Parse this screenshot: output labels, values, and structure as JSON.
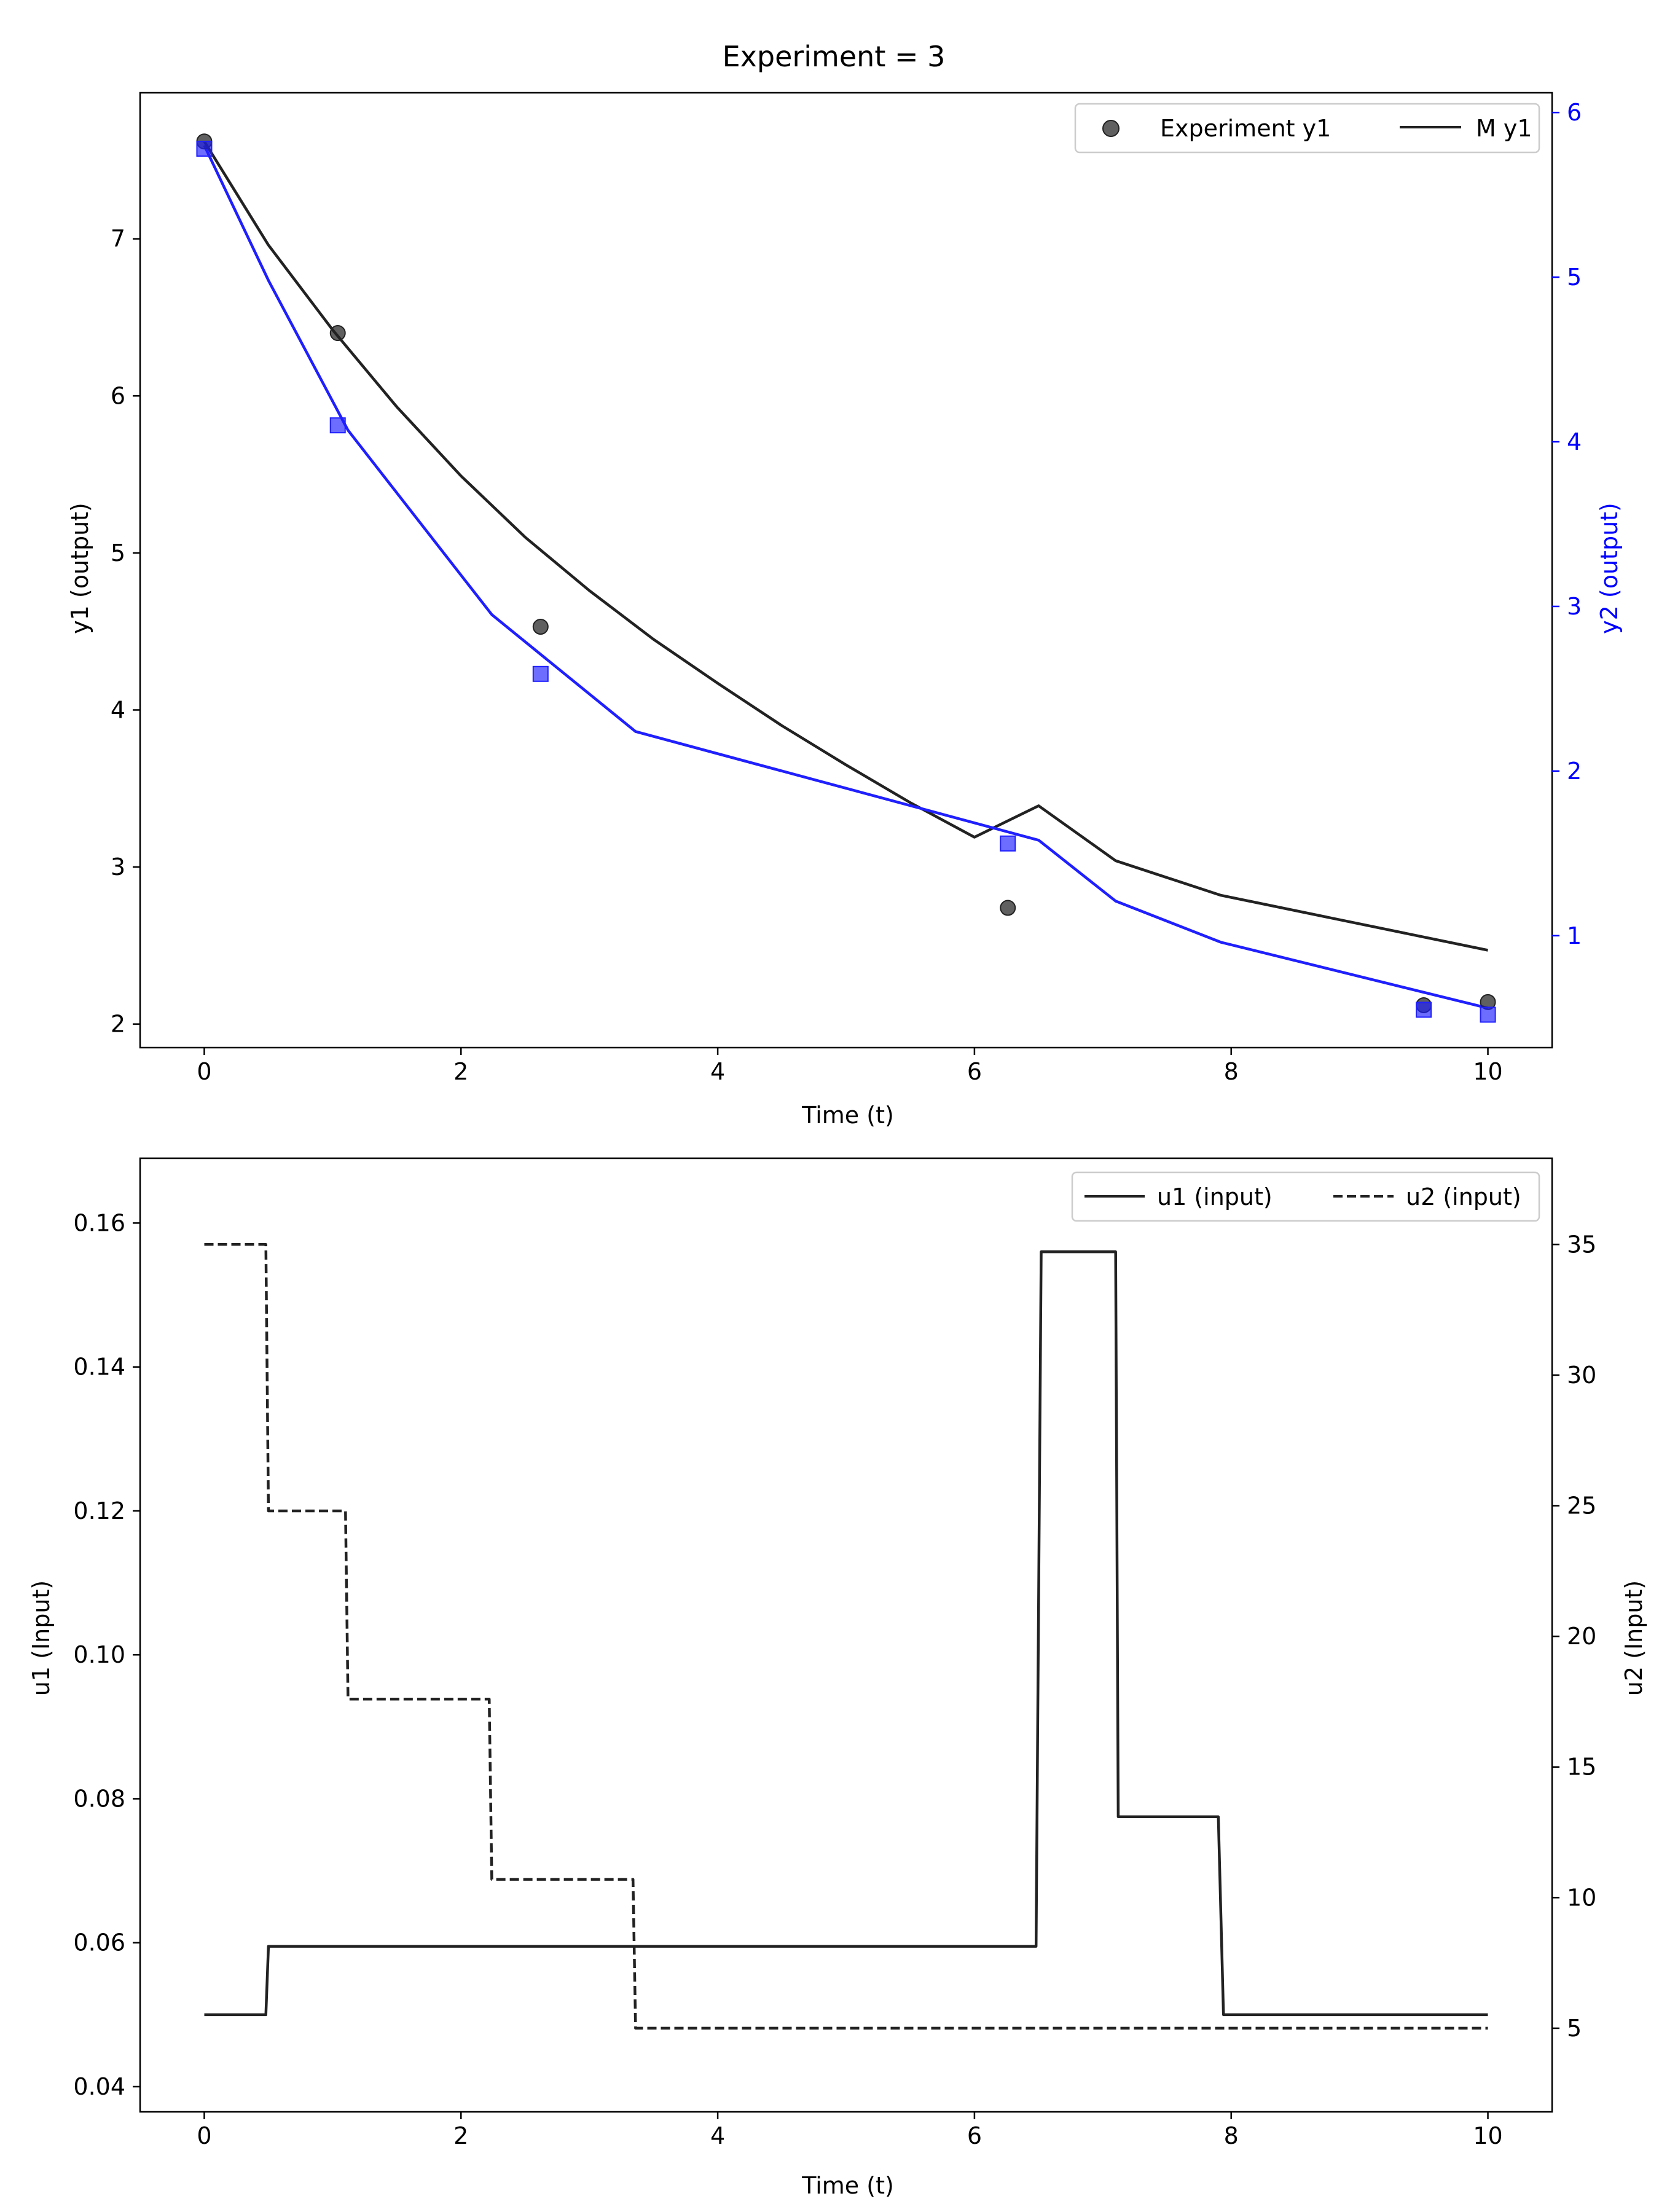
{
  "suptitle": "Experiment = 3",
  "colors": {
    "black": "#222222",
    "blue": "#1f1fff",
    "axis": "#000000",
    "blue_text": "#0000ff"
  },
  "chart_data": [
    {
      "type": "line",
      "name": "top-output-plot",
      "xlabel": "Time (t)",
      "ylabel": "y1 (output)",
      "ylabel_right": "y2 (output)",
      "xlim": [
        -0.5,
        10.5
      ],
      "ylim": [
        1.85,
        7.93
      ],
      "ylim_right": [
        0.32,
        6.12
      ],
      "xticks": [
        0,
        2,
        4,
        6,
        8,
        10
      ],
      "yticks": [
        2,
        3,
        4,
        5,
        6,
        7
      ],
      "yticks_right": [
        1,
        2,
        3,
        4,
        5,
        6
      ],
      "legend": {
        "position": "top-right",
        "entries": [
          {
            "label": "Experiment y1",
            "marker": "circle"
          },
          {
            "label": "M y1",
            "marker": "line"
          }
        ]
      },
      "series": [
        {
          "name": "M y1",
          "axis": "left",
          "style": "line",
          "color": "#222222",
          "x": [
            0,
            0.5,
            1,
            1.5,
            2,
            2.5,
            3,
            3.5,
            4,
            4.5,
            5,
            5.5,
            6,
            6.5,
            7.1,
            7.92,
            10
          ],
          "y": [
            7.62,
            6.96,
            6.42,
            5.93,
            5.49,
            5.1,
            4.76,
            4.45,
            4.17,
            3.9,
            3.65,
            3.41,
            3.19,
            3.39,
            3.04,
            2.82,
            2.47
          ]
        },
        {
          "name": "M y2",
          "axis": "right",
          "style": "line",
          "color": "#1f1fff",
          "x": [
            0,
            0.5,
            1.12,
            2.24,
            3.36,
            6.5,
            7.1,
            7.92,
            10
          ],
          "y": [
            5.8,
            4.98,
            4.07,
            2.95,
            2.24,
            1.58,
            1.21,
            0.96,
            0.56
          ]
        },
        {
          "name": "Experiment y1",
          "axis": "left",
          "style": "scatter-circle",
          "color": "#222222",
          "x": [
            0,
            1.04,
            2.62,
            6.26,
            9.5,
            10
          ],
          "y": [
            7.62,
            6.4,
            4.53,
            2.74,
            2.12,
            2.14
          ]
        },
        {
          "name": "Experiment y2",
          "axis": "right",
          "style": "scatter-square",
          "color": "#1f1fff",
          "x": [
            0,
            1.04,
            2.62,
            6.26,
            9.5,
            10
          ],
          "y": [
            5.78,
            4.1,
            2.59,
            1.56,
            0.55,
            0.52
          ]
        }
      ]
    },
    {
      "type": "line",
      "name": "bottom-input-plot",
      "xlabel": "Time (t)",
      "ylabel": "u1 (Input)",
      "ylabel_right": "u2 (Input)",
      "xlim": [
        -0.5,
        10.5
      ],
      "ylim": [
        0.0365,
        0.169
      ],
      "ylim_right": [
        1.8,
        38.3
      ],
      "xticks": [
        0,
        2,
        4,
        6,
        8,
        10
      ],
      "yticks": [
        0.04,
        0.06,
        0.08,
        0.1,
        0.12,
        0.14,
        0.16
      ],
      "yticks_right": [
        5,
        10,
        15,
        20,
        25,
        30,
        35
      ],
      "legend": {
        "position": "top-right",
        "entries": [
          {
            "label": "u1 (input)",
            "marker": "line"
          },
          {
            "label": "u2 (input)",
            "marker": "dashed"
          }
        ]
      },
      "series": [
        {
          "name": "u1 (input)",
          "axis": "left",
          "style": "line",
          "color": "#222222",
          "x": [
            0,
            0.48,
            0.5,
            6.48,
            6.52,
            7.1,
            7.12,
            7.9,
            7.94,
            10
          ],
          "y": [
            0.05,
            0.05,
            0.0595,
            0.0595,
            0.156,
            0.156,
            0.0775,
            0.0775,
            0.05,
            0.05
          ]
        },
        {
          "name": "u2 (input)",
          "axis": "right",
          "style": "dashed",
          "color": "#222222",
          "x": [
            0,
            0.48,
            0.5,
            1.1,
            1.12,
            2.22,
            2.24,
            3.34,
            3.36,
            10
          ],
          "y": [
            35,
            35,
            24.8,
            24.8,
            17.6,
            17.6,
            10.7,
            10.7,
            5,
            5
          ]
        }
      ]
    }
  ]
}
